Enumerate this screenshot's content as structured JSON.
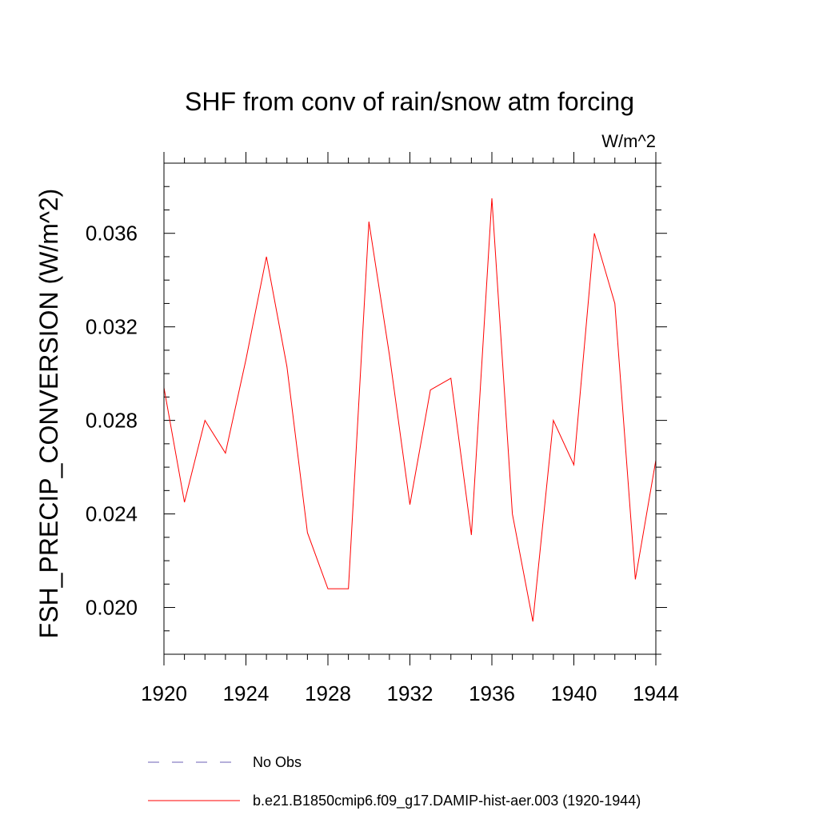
{
  "chart_data": {
    "type": "line",
    "title": "SHF from conv of rain/snow atm forcing",
    "units_label": "W/m^2",
    "ylabel": "FSH_PRECIP_CONVERSION  (W/m^2)",
    "xlabel": "",
    "xlim": [
      1920,
      1944
    ],
    "ylim": [
      0.018,
      0.039
    ],
    "x_ticks": [
      1920,
      1924,
      1928,
      1932,
      1936,
      1940,
      1944
    ],
    "x_tick_labels": [
      "1920",
      "1924",
      "1928",
      "1932",
      "1936",
      "1940",
      "1944"
    ],
    "y_ticks": [
      0.02,
      0.024,
      0.028,
      0.032,
      0.036
    ],
    "y_tick_labels": [
      "0.020",
      "0.024",
      "0.028",
      "0.032",
      "0.036"
    ],
    "x_minor_step": 1,
    "y_minor_step": 0.001,
    "grid": false,
    "legend_position": "bottom",
    "series": [
      {
        "name": "b.e21.B1850cmip6.f09_g17.DAMIP-hist-aer.003 (1920-1944)",
        "color": "#ff0000",
        "style": "solid",
        "x": [
          1920,
          1921,
          1922,
          1923,
          1924,
          1925,
          1926,
          1927,
          1928,
          1929,
          1930,
          1931,
          1932,
          1933,
          1934,
          1935,
          1936,
          1937,
          1938,
          1939,
          1940,
          1941,
          1942,
          1943,
          1944
        ],
        "values": [
          0.0294,
          0.0245,
          0.028,
          0.0266,
          0.0306,
          0.035,
          0.0303,
          0.0232,
          0.0208,
          0.0208,
          0.0365,
          0.0308,
          0.0244,
          0.0293,
          0.0298,
          0.0231,
          0.0375,
          0.024,
          0.0194,
          0.028,
          0.0261,
          0.036,
          0.033,
          0.0212,
          0.0263
        ]
      }
    ],
    "legend": [
      {
        "label": "No Obs",
        "color": "#6b5fb5",
        "style": "dashed"
      },
      {
        "label": "b.e21.B1850cmip6.f09_g17.DAMIP-hist-aer.003 (1920-1944)",
        "color": "#ff0000",
        "style": "solid"
      }
    ]
  }
}
